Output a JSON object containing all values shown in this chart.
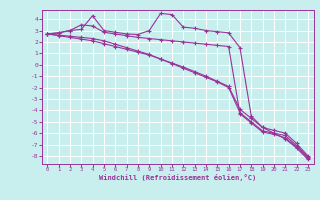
{
  "xlabel": "Windchill (Refroidissement éolien,°C)",
  "bg_color": "#c8eeee",
  "line_color": "#993399",
  "grid_color": "#ffffff",
  "xlim": [
    -0.5,
    23.5
  ],
  "ylim": [
    -8.7,
    4.8
  ],
  "xticks": [
    0,
    1,
    2,
    3,
    4,
    5,
    6,
    7,
    8,
    9,
    10,
    11,
    12,
    13,
    14,
    15,
    16,
    17,
    18,
    19,
    20,
    21,
    22,
    23
  ],
  "yticks": [
    4,
    3,
    2,
    1,
    0,
    -1,
    -2,
    -3,
    -4,
    -5,
    -6,
    -7,
    -8
  ],
  "curves": [
    [
      2.7,
      2.8,
      3.0,
      3.1,
      4.3,
      3.0,
      2.85,
      2.7,
      2.65,
      3.0,
      4.5,
      4.4,
      3.3,
      3.2,
      3.0,
      2.9,
      2.8,
      1.5,
      -4.5,
      -5.5,
      -6.0,
      -6.5,
      -7.3,
      -8.3
    ],
    [
      2.7,
      2.8,
      3.0,
      3.5,
      3.4,
      2.85,
      2.7,
      2.55,
      2.4,
      2.3,
      2.2,
      2.1,
      2.0,
      1.9,
      1.8,
      1.7,
      1.6,
      -4.3,
      -5.1,
      -5.9,
      -6.1,
      -6.4,
      -7.2,
      -8.2
    ],
    [
      2.7,
      2.6,
      2.5,
      2.4,
      2.3,
      2.1,
      1.8,
      1.5,
      1.2,
      0.9,
      0.5,
      0.1,
      -0.3,
      -0.7,
      -1.1,
      -1.5,
      -2.0,
      -4.2,
      -5.0,
      -5.8,
      -6.0,
      -6.2,
      -7.1,
      -8.1
    ],
    [
      2.7,
      2.55,
      2.4,
      2.25,
      2.1,
      1.85,
      1.6,
      1.35,
      1.1,
      0.85,
      0.5,
      0.15,
      -0.2,
      -0.6,
      -1.0,
      -1.45,
      -1.9,
      -3.9,
      -4.7,
      -5.5,
      -5.75,
      -6.0,
      -6.9,
      -8.0
    ]
  ]
}
